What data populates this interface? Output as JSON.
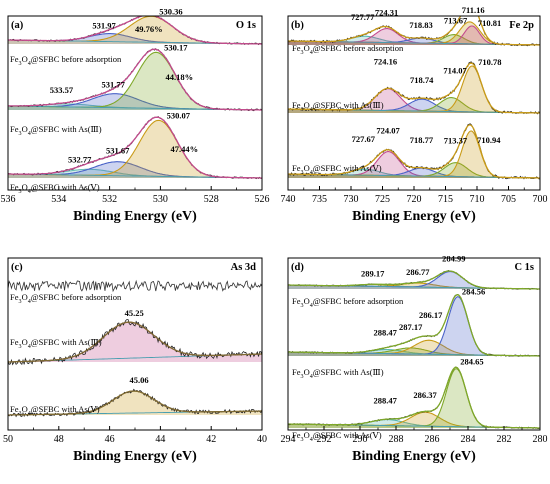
{
  "chart_data": [
    {
      "type": "line",
      "panel_label": "(a)",
      "title": "O 1s",
      "xlabel": "Binding Energy (eV)",
      "xlim": [
        536,
        526
      ],
      "xticks": [
        536,
        534,
        532,
        530,
        528,
        526
      ],
      "samples": [
        {
          "name": "Fe3O4@SFBC before adsorption",
          "peaks": [
            "531.97",
            "530.36"
          ],
          "ratio": "49.76%"
        },
        {
          "name": "Fe3O4@SFBC with As(Ⅲ)",
          "peaks": [
            "533.57",
            "531.77",
            "530.17"
          ],
          "ratio": "44.18%"
        },
        {
          "name": "Fe3O4@SFBC with As(Ⅴ)",
          "peaks": [
            "532.77",
            "531.67",
            "530.07"
          ],
          "ratio": "47.44%"
        }
      ]
    },
    {
      "type": "line",
      "panel_label": "(b)",
      "title": "Fe 2p",
      "xlabel": "Binding Energy (eV)",
      "xlim": [
        740,
        700
      ],
      "xticks": [
        740,
        735,
        730,
        725,
        720,
        715,
        710,
        705,
        700
      ],
      "samples": [
        {
          "name": "Fe3O4@SFBC before adsorption",
          "peaks": [
            "727.77",
            "724.31",
            "718.83",
            "713.67",
            "711.16",
            "710.81"
          ]
        },
        {
          "name": "Fe3O4@SFBC with As(Ⅲ)",
          "peaks": [
            "724.16",
            "718.74",
            "714.07",
            "710.78"
          ]
        },
        {
          "name": "Fe3O4@SFBC with As(Ⅴ)",
          "peaks": [
            "727.67",
            "724.07",
            "718.77",
            "713.37",
            "710.94"
          ]
        }
      ]
    },
    {
      "type": "line",
      "panel_label": "(c)",
      "title": "As 3d",
      "xlabel": "Binding Energy (eV)",
      "xlim": [
        50,
        40
      ],
      "xticks": [
        50,
        48,
        46,
        44,
        42,
        40
      ],
      "samples": [
        {
          "name": "Fe3O4@SFBC before adsorption",
          "peaks": []
        },
        {
          "name": "Fe3O4@SFBC with As(Ⅲ)",
          "peaks": [
            "45.25"
          ]
        },
        {
          "name": "Fe3O4@SFBC with As(Ⅴ)",
          "peaks": [
            "45.06"
          ]
        }
      ]
    },
    {
      "type": "line",
      "panel_label": "(d)",
      "title": "C 1s",
      "xlabel": "Binding Energy (eV)",
      "xlim": [
        294,
        280
      ],
      "xticks": [
        294,
        292,
        290,
        288,
        286,
        284,
        282,
        280
      ],
      "samples": [
        {
          "name": "Fe3O4@SFBC before adsorption",
          "peaks": [
            "289.17",
            "286.77",
            "284.99"
          ]
        },
        {
          "name": "Fe3O4@SFBC with As(Ⅲ)",
          "peaks": [
            "288.47",
            "287.17",
            "286.17",
            "284.56"
          ]
        },
        {
          "name": "Fe3O4@SFBC with As(Ⅴ)",
          "peaks": [
            "288.47",
            "286.37",
            "284.65"
          ]
        }
      ]
    }
  ]
}
